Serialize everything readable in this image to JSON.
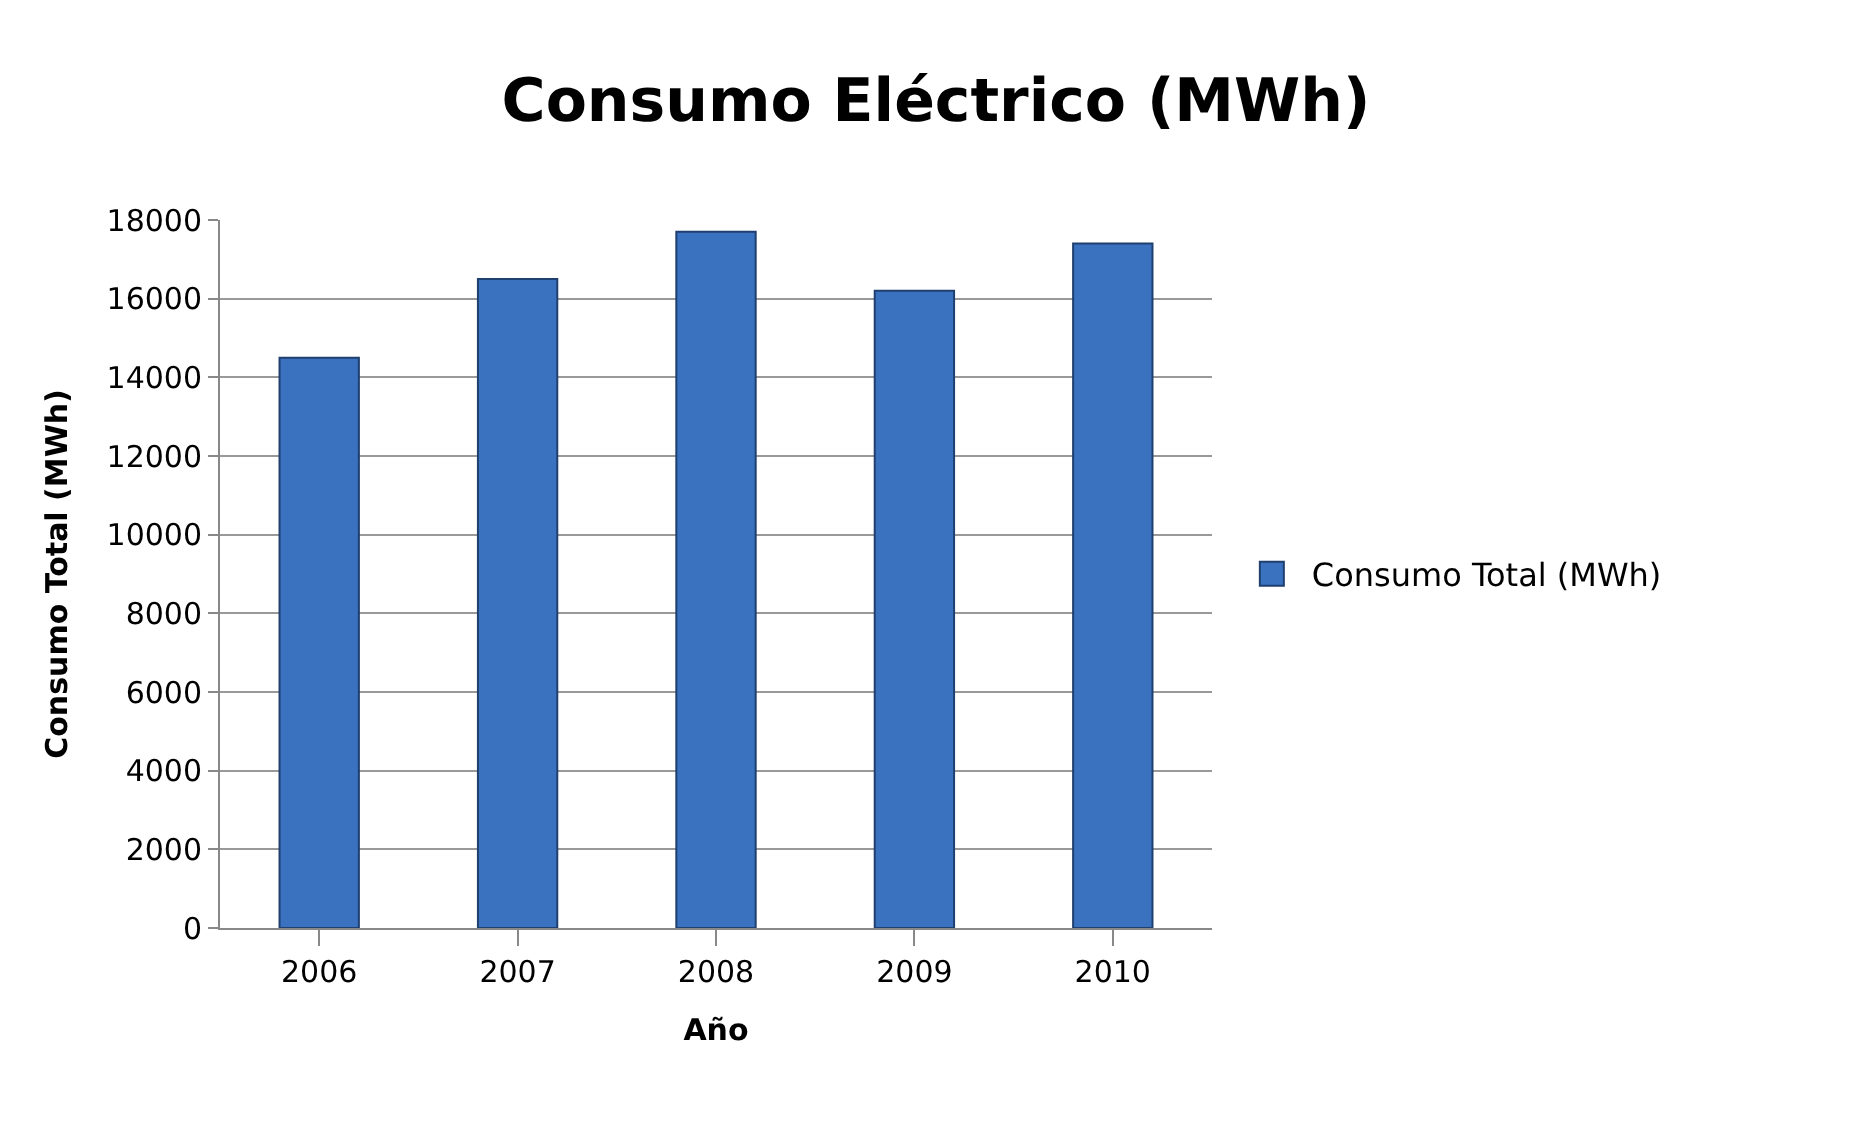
{
  "chart_data": {
    "type": "bar",
    "title": "Consumo Eléctrico (MWh)",
    "xlabel": "Año",
    "ylabel": "Consumo Total (MWh)",
    "categories": [
      "2006",
      "2007",
      "2008",
      "2009",
      "2010"
    ],
    "series": [
      {
        "name": "Consumo Total (MWh)",
        "color": "#3a72c0",
        "values": [
          14500,
          16500,
          17700,
          16200,
          17400
        ]
      }
    ],
    "ylim": [
      0,
      18000
    ],
    "yticks": [
      0,
      2000,
      4000,
      6000,
      8000,
      10000,
      12000,
      14000,
      16000,
      18000
    ],
    "grid": "y",
    "legend": "right"
  }
}
